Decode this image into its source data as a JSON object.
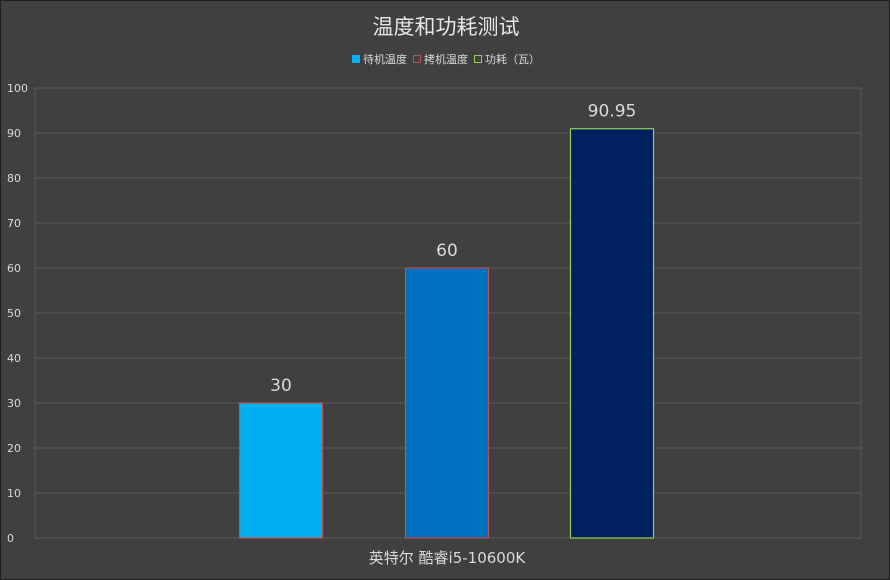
{
  "chart_data": {
    "type": "bar",
    "title": "温度和功耗测试",
    "categories": [
      "英特尔 酷睿i5-10600K"
    ],
    "series": [
      {
        "name": "待机温度",
        "values": [
          30
        ],
        "color": "#00b0f0",
        "border": "#c0504d"
      },
      {
        "name": "拷机温度",
        "values": [
          60
        ],
        "color": "#0070c0",
        "border": "#c0504d"
      },
      {
        "name": "功耗（瓦）",
        "values": [
          90.95
        ],
        "color": "#002060",
        "border": "#92d050"
      }
    ],
    "data_labels": [
      "30",
      "60",
      "90.95"
    ],
    "y_ticks": [
      "0",
      "10",
      "20",
      "30",
      "40",
      "50",
      "60",
      "70",
      "80",
      "90",
      "100"
    ],
    "ylim": [
      0,
      100
    ],
    "xlabel": "",
    "ylabel": "",
    "grid": true,
    "legend_position": "top"
  },
  "colors": {
    "background": "#404040",
    "gridline": "#5a5a5a",
    "text": "#d9d9d9"
  }
}
